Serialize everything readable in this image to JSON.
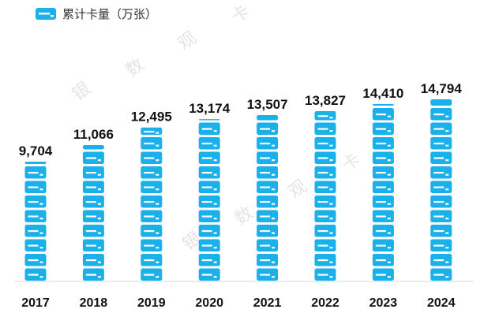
{
  "chart_data": {
    "type": "bar",
    "legend": "累计卡量（万张）",
    "legend_placement": "top-left",
    "categories": [
      "2017",
      "2018",
      "2019",
      "2020",
      "2021",
      "2022",
      "2023",
      "2024"
    ],
    "values": [
      9704,
      11066,
      12495,
      13174,
      13507,
      13827,
      14410,
      14794
    ],
    "value_labels": [
      "9,704",
      "11,066",
      "12,495",
      "13,174",
      "13,507",
      "13,827",
      "14,410",
      "14,794"
    ],
    "ylim": [
      0,
      15000
    ],
    "grid": false
  },
  "watermark": [
    "银",
    "数",
    "观",
    "卡"
  ],
  "colors": {
    "bar": "#1ab0ea",
    "card_stripe": "#ffffff",
    "baseline": "#d9d9d9"
  }
}
